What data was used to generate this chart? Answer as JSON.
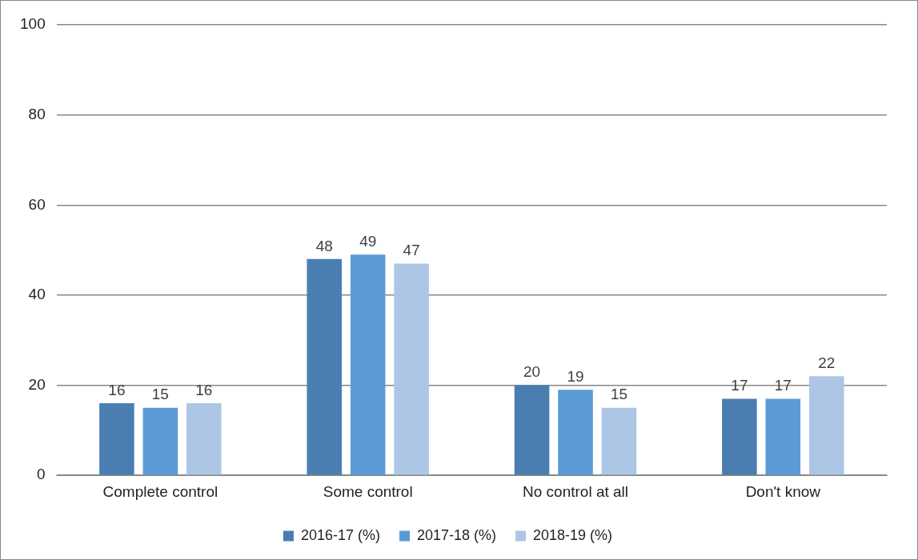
{
  "chart_data": {
    "type": "bar",
    "categories": [
      "Complete control",
      "Some control",
      "No control at all",
      "Don't know"
    ],
    "series": [
      {
        "name": "2016-17 (%)",
        "color": "#4a7eb0",
        "values": [
          16,
          48,
          20,
          17
        ]
      },
      {
        "name": "2017-18 (%)",
        "color": "#5b9bd5",
        "values": [
          15,
          49,
          19,
          17
        ]
      },
      {
        "name": "2018-19 (%)",
        "color": "#adc6e6",
        "values": [
          16,
          47,
          15,
          22
        ]
      }
    ],
    "ylim": [
      0,
      100
    ],
    "yticks": [
      0,
      20,
      40,
      60,
      80,
      100
    ],
    "grid": "y",
    "legend": "bottom",
    "data_labels": true
  }
}
